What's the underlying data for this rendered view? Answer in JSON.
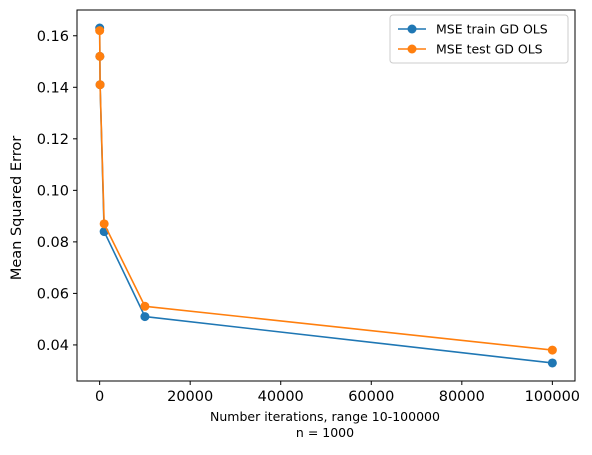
{
  "chart_data": {
    "type": "line",
    "xlabel_line1": "Number iterations, range 10-100000",
    "xlabel_line2": "n = 1000",
    "ylabel": "Mean Squared Error",
    "xlim": [
      -5000,
      105000
    ],
    "ylim": [
      0.026,
      0.17
    ],
    "x_ticks": [
      0,
      20000,
      40000,
      60000,
      80000,
      100000
    ],
    "x_tick_labels": [
      "0",
      "20000",
      "40000",
      "60000",
      "80000",
      "100000"
    ],
    "y_ticks": [
      0.04,
      0.06,
      0.08,
      0.1,
      0.12,
      0.14,
      0.16
    ],
    "y_tick_labels": [
      "0.04",
      "0.06",
      "0.08",
      "0.10",
      "0.12",
      "0.14",
      "0.16"
    ],
    "grid": false,
    "legend_position": "top-right",
    "series": [
      {
        "name": "MSE train GD OLS",
        "color": "#1f77b4",
        "marker": "circle",
        "x": [
          10,
          50,
          100,
          1000,
          10000,
          100000
        ],
        "y": [
          0.163,
          0.152,
          0.141,
          0.084,
          0.051,
          0.033
        ]
      },
      {
        "name": "MSE test GD OLS",
        "color": "#ff7f0e",
        "marker": "circle",
        "x": [
          10,
          50,
          100,
          1000,
          10000,
          100000
        ],
        "y": [
          0.162,
          0.152,
          0.141,
          0.087,
          0.055,
          0.038
        ]
      }
    ]
  }
}
